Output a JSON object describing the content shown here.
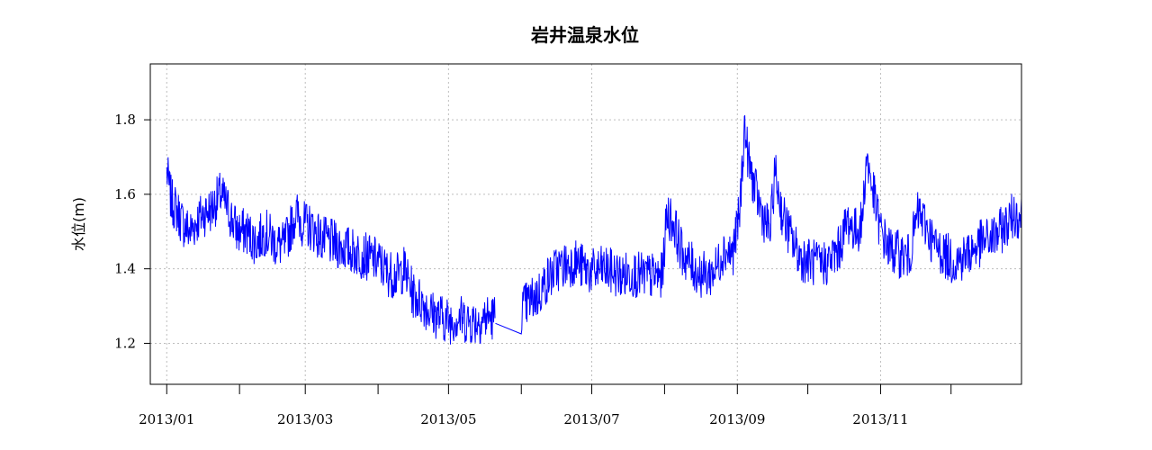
{
  "chart_data": {
    "type": "line",
    "title": "岩井温泉水位",
    "xlabel": "",
    "ylabel": "水位(m)",
    "xlim": [
      "2012-12-25",
      "2013-12-31"
    ],
    "ylim": [
      1.09,
      1.95
    ],
    "x_ticks": [
      "2013-01-01",
      "2013-02-01",
      "2013-03-01",
      "2013-04-01",
      "2013-05-01",
      "2013-06-01",
      "2013-07-01",
      "2013-08-01",
      "2013-09-01",
      "2013-10-01",
      "2013-11-01",
      "2013-12-01"
    ],
    "x_tick_labels": [
      {
        "date": "2013-01-01",
        "label": "2013/01"
      },
      {
        "date": "2013-03-01",
        "label": "2013/03"
      },
      {
        "date": "2013-05-01",
        "label": "2013/05"
      },
      {
        "date": "2013-07-01",
        "label": "2013/07"
      },
      {
        "date": "2013-09-01",
        "label": "2013/09"
      },
      {
        "date": "2013-11-01",
        "label": "2013/11"
      }
    ],
    "y_ticks": [
      1.2,
      1.4,
      1.6,
      1.8
    ],
    "y_tick_labels": [
      "1.2",
      "1.4",
      "1.6",
      "1.8"
    ],
    "grid": true,
    "series": [
      {
        "color": "#0000ff",
        "gap": [
          "2013-05-21",
          "2013-06-01"
        ],
        "points": [
          [
            "2013-01-01",
            1.66
          ],
          [
            "2013-01-03",
            1.58
          ],
          [
            "2013-01-05",
            1.56
          ],
          [
            "2013-01-08",
            1.52
          ],
          [
            "2013-01-11",
            1.5
          ],
          [
            "2013-01-14",
            1.53
          ],
          [
            "2013-01-17",
            1.55
          ],
          [
            "2013-01-20",
            1.56
          ],
          [
            "2013-01-24",
            1.6
          ],
          [
            "2013-01-27",
            1.56
          ],
          [
            "2013-01-31",
            1.5
          ],
          [
            "2013-02-04",
            1.5
          ],
          [
            "2013-02-08",
            1.47
          ],
          [
            "2013-02-12",
            1.5
          ],
          [
            "2013-02-16",
            1.47
          ],
          [
            "2013-02-20",
            1.46
          ],
          [
            "2013-02-25",
            1.55
          ],
          [
            "2013-02-28",
            1.52
          ],
          [
            "2013-03-04",
            1.51
          ],
          [
            "2013-03-08",
            1.48
          ],
          [
            "2013-03-12",
            1.47
          ],
          [
            "2013-03-16",
            1.46
          ],
          [
            "2013-03-20",
            1.45
          ],
          [
            "2013-03-24",
            1.44
          ],
          [
            "2013-03-28",
            1.43
          ],
          [
            "2013-04-01",
            1.42
          ],
          [
            "2013-04-05",
            1.39
          ],
          [
            "2013-04-09",
            1.38
          ],
          [
            "2013-04-12",
            1.4
          ],
          [
            "2013-04-16",
            1.33
          ],
          [
            "2013-04-20",
            1.31
          ],
          [
            "2013-04-24",
            1.28
          ],
          [
            "2013-04-28",
            1.27
          ],
          [
            "2013-05-01",
            1.26
          ],
          [
            "2013-05-05",
            1.27
          ],
          [
            "2013-05-09",
            1.26
          ],
          [
            "2013-05-13",
            1.26
          ],
          [
            "2013-05-17",
            1.27
          ],
          [
            "2013-05-21",
            1.27
          ],
          [
            "2013-06-01",
            1.29
          ],
          [
            "2013-06-04",
            1.31
          ],
          [
            "2013-06-08",
            1.33
          ],
          [
            "2013-06-12",
            1.37
          ],
          [
            "2013-06-16",
            1.4
          ],
          [
            "2013-06-20",
            1.41
          ],
          [
            "2013-06-24",
            1.42
          ],
          [
            "2013-06-28",
            1.4
          ],
          [
            "2013-07-02",
            1.39
          ],
          [
            "2013-07-06",
            1.4
          ],
          [
            "2013-07-10",
            1.39
          ],
          [
            "2013-07-14",
            1.38
          ],
          [
            "2013-07-18",
            1.39
          ],
          [
            "2013-07-22",
            1.38
          ],
          [
            "2013-07-26",
            1.38
          ],
          [
            "2013-07-31",
            1.38
          ],
          [
            "2013-08-02",
            1.55
          ],
          [
            "2013-08-05",
            1.52
          ],
          [
            "2013-08-08",
            1.45
          ],
          [
            "2013-08-11",
            1.42
          ],
          [
            "2013-08-15",
            1.39
          ],
          [
            "2013-08-19",
            1.38
          ],
          [
            "2013-08-23",
            1.4
          ],
          [
            "2013-08-26",
            1.45
          ],
          [
            "2013-08-30",
            1.44
          ],
          [
            "2013-09-02",
            1.55
          ],
          [
            "2013-09-04",
            1.78
          ],
          [
            "2013-09-06",
            1.68
          ],
          [
            "2013-09-09",
            1.6
          ],
          [
            "2013-09-12",
            1.54
          ],
          [
            "2013-09-15",
            1.5
          ],
          [
            "2013-09-17",
            1.66
          ],
          [
            "2013-09-20",
            1.55
          ],
          [
            "2013-09-24",
            1.48
          ],
          [
            "2013-09-28",
            1.43
          ],
          [
            "2013-10-02",
            1.42
          ],
          [
            "2013-10-06",
            1.41
          ],
          [
            "2013-10-10",
            1.42
          ],
          [
            "2013-10-14",
            1.45
          ],
          [
            "2013-10-18",
            1.53
          ],
          [
            "2013-10-21",
            1.5
          ],
          [
            "2013-10-24",
            1.52
          ],
          [
            "2013-10-26",
            1.7
          ],
          [
            "2013-10-29",
            1.6
          ],
          [
            "2013-11-01",
            1.5
          ],
          [
            "2013-11-05",
            1.45
          ],
          [
            "2013-11-09",
            1.44
          ],
          [
            "2013-11-13",
            1.43
          ],
          [
            "2013-11-17",
            1.55
          ],
          [
            "2013-11-20",
            1.52
          ],
          [
            "2013-11-24",
            1.46
          ],
          [
            "2013-11-28",
            1.44
          ],
          [
            "2013-12-02",
            1.42
          ],
          [
            "2013-12-06",
            1.43
          ],
          [
            "2013-12-10",
            1.45
          ],
          [
            "2013-12-14",
            1.47
          ],
          [
            "2013-12-18",
            1.48
          ],
          [
            "2013-12-22",
            1.5
          ],
          [
            "2013-12-26",
            1.53
          ],
          [
            "2013-12-28",
            1.55
          ],
          [
            "2013-12-31",
            1.54
          ]
        ]
      }
    ]
  }
}
